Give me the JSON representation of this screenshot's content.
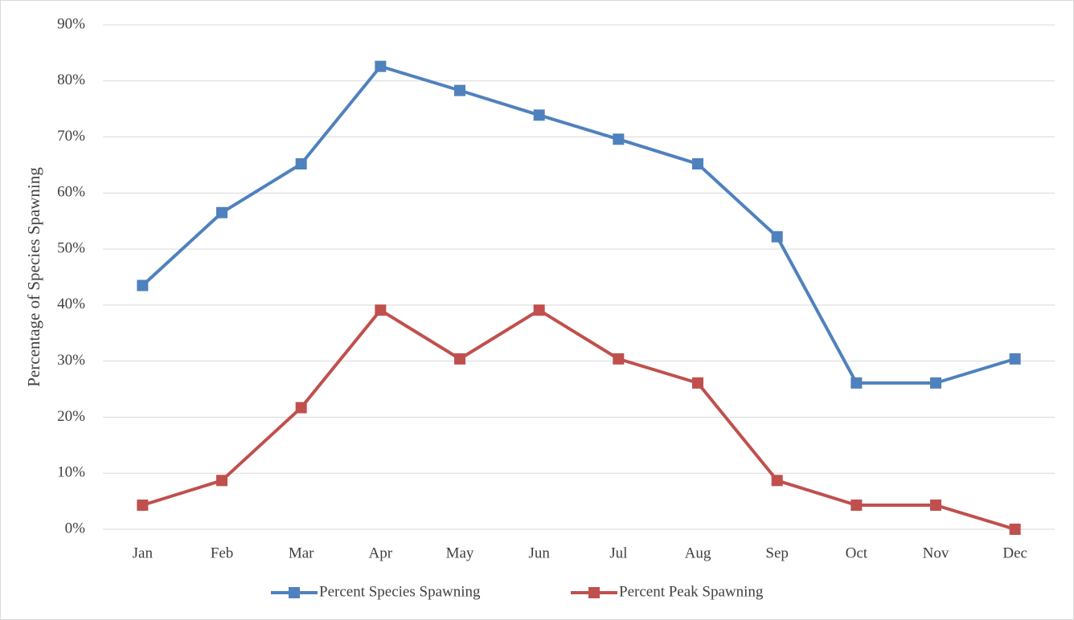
{
  "chart_data": {
    "type": "line",
    "y_label": "Percentage of Species Spawning",
    "categories": [
      "Jan",
      "Feb",
      "Mar",
      "Apr",
      "May",
      "Jun",
      "Jul",
      "Aug",
      "Sep",
      "Oct",
      "Nov",
      "Dec"
    ],
    "series": [
      {
        "name": "Percent Species Spawning",
        "color": "#4f81bd",
        "values": [
          43.5,
          56.5,
          65.2,
          82.6,
          78.3,
          73.9,
          69.6,
          65.2,
          52.2,
          26.1,
          26.1,
          30.4
        ]
      },
      {
        "name": "Percent Peak Spawning",
        "color": "#c0504d",
        "values": [
          4.3,
          8.7,
          21.7,
          39.1,
          30.4,
          39.1,
          30.4,
          26.1,
          8.7,
          4.3,
          4.3,
          0
        ]
      }
    ],
    "ylim": [
      0,
      90
    ],
    "yticks": [
      {
        "value": 0,
        "label": "0%"
      },
      {
        "value": 10,
        "label": "10%"
      },
      {
        "value": 20,
        "label": "20%"
      },
      {
        "value": 30,
        "label": "30%"
      },
      {
        "value": 40,
        "label": "40%"
      },
      {
        "value": 50,
        "label": "50%"
      },
      {
        "value": 60,
        "label": "60%"
      },
      {
        "value": 70,
        "label": "70%"
      },
      {
        "value": 80,
        "label": "80%"
      },
      {
        "value": 90,
        "label": "90%"
      }
    ],
    "grid": true,
    "legend": "bottom"
  }
}
